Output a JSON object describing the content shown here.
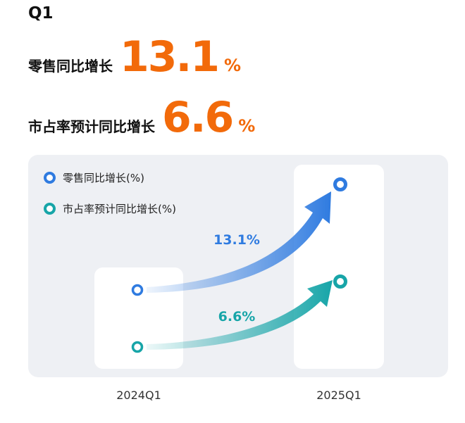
{
  "header": {
    "quarter": "Q1",
    "stats": [
      {
        "label": "零售同比增长",
        "value": "13.1",
        "unit": "%"
      },
      {
        "label": "市占率预计同比增长",
        "value": "6.6",
        "unit": "%"
      }
    ]
  },
  "chart_data": {
    "type": "line",
    "categories": [
      "2024Q1",
      "2025Q1"
    ],
    "series": [
      {
        "name": "零售同比增长(%)",
        "change_label": "13.1%",
        "color": "#2f7be0"
      },
      {
        "name": "市占率预计同比增长(%)",
        "change_label": "6.6%",
        "color": "#17a5a8"
      }
    ],
    "legend": "top-left",
    "grid": false
  }
}
